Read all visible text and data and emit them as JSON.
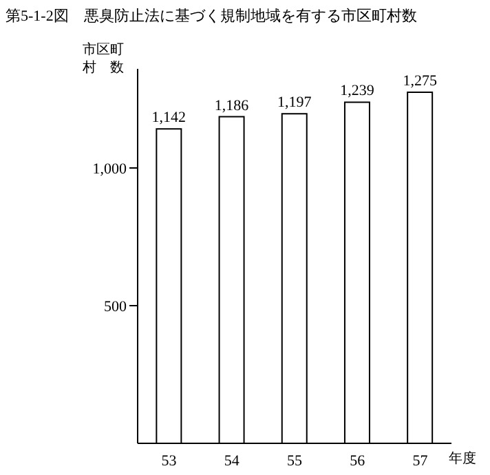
{
  "chart_data": {
    "type": "bar",
    "title": "第5-1-2図　悪臭防止法に基づく規制地域を有する市区町村数",
    "ylabel": "市区町村　数",
    "xlabel": "年度",
    "categories": [
      "53",
      "54",
      "55",
      "56",
      "57"
    ],
    "values": [
      1142,
      1186,
      1197,
      1239,
      1275
    ],
    "value_labels": [
      "1,142",
      "1,186",
      "1,197",
      "1,239",
      "1,275"
    ],
    "color": "#ffffff",
    "ylim": [
      0,
      1360
    ],
    "yticks": [
      500,
      {
        "value": 1000,
        "label": "1,000"
      }
    ],
    "grid": false,
    "legend": false
  }
}
